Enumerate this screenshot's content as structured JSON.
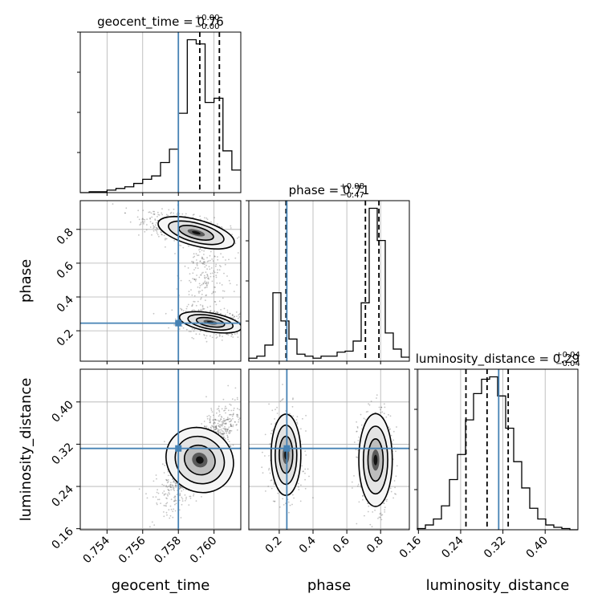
{
  "chart_data": {
    "type": "corner",
    "parameters": [
      "geocent_time",
      "phase",
      "luminosity_distance"
    ],
    "injection": {
      "geocent_time": 0.758,
      "phase": 0.245,
      "luminosity_distance": 0.312
    },
    "titles": [
      {
        "param": "geocent_time",
        "prefix": "geocent_time = ",
        "value": "0.76",
        "plus": "+0.00",
        "minus": "−0.00"
      },
      {
        "param": "phase",
        "prefix": "phase = ",
        "value": "0.71",
        "plus": "+0.08",
        "minus": "−0.47"
      },
      {
        "param": "luminosity_distance",
        "prefix": "luminosity_distance = ",
        "value": "0.29",
        "plus": "+0.04",
        "minus": "−0.04"
      }
    ],
    "axes": {
      "geocent_time": {
        "range": [
          0.7525,
          0.7615
        ],
        "ticks": [
          0.754,
          0.756,
          0.758,
          0.76
        ],
        "tick_labels": [
          "0.754",
          "0.756",
          "0.758",
          "0.760"
        ]
      },
      "phase": {
        "range": [
          0.02,
          0.97
        ],
        "ticks": [
          0.2,
          0.4,
          0.6,
          0.8
        ],
        "tick_labels": [
          "0.2",
          "0.4",
          "0.6",
          "0.8"
        ]
      },
      "luminosity_distance": {
        "range": [
          0.158,
          0.462
        ],
        "ticks": [
          0.16,
          0.24,
          0.32,
          0.4
        ],
        "tick_labels": [
          "0.16",
          "0.24",
          "0.32",
          "0.40"
        ]
      }
    },
    "histograms": [
      {
        "param": "geocent_time",
        "bins": [
          0.7525,
          0.753,
          0.7535,
          0.754,
          0.7545,
          0.755,
          0.7555,
          0.756,
          0.7565,
          0.757,
          0.7575,
          0.758,
          0.7585,
          0.759,
          0.7595,
          0.76,
          0.7605,
          0.761,
          0.7615
        ],
        "counts": [
          0,
          1,
          1,
          3,
          5,
          7,
          11,
          16,
          20,
          36,
          52,
          95,
          183,
          178,
          108,
          113,
          50,
          27
        ],
        "quantiles": [
          0.7592,
          0.7603
        ]
      },
      {
        "param": "phase",
        "bins": [
          0.02,
          0.0675,
          0.115,
          0.1625,
          0.21,
          0.2575,
          0.305,
          0.3525,
          0.4,
          0.4475,
          0.495,
          0.5425,
          0.59,
          0.6375,
          0.685,
          0.7325,
          0.78,
          0.8275,
          0.875,
          0.9225,
          0.97
        ],
        "counts": [
          3,
          5,
          16,
          68,
          40,
          22,
          7,
          5,
          3,
          5,
          5,
          9,
          10,
          20,
          58,
          152,
          120,
          28,
          12,
          4
        ],
        "quantiles": [
          0.24,
          0.71,
          0.79
        ]
      },
      {
        "param": "luminosity_distance",
        "bins": [
          0.158,
          0.1732,
          0.1884,
          0.2036,
          0.2188,
          0.234,
          0.2492,
          0.2644,
          0.2796,
          0.2948,
          0.31,
          0.3252,
          0.3404,
          0.3556,
          0.3708,
          0.386,
          0.4012,
          0.4164,
          0.4316,
          0.4468,
          0.462
        ],
        "counts": [
          1,
          4,
          9,
          20,
          42,
          63,
          92,
          114,
          126,
          128,
          112,
          85,
          57,
          35,
          18,
          9,
          4,
          2,
          1,
          0
        ],
        "quantiles": [
          0.25,
          0.29,
          0.33
        ]
      }
    ],
    "grid": true
  }
}
